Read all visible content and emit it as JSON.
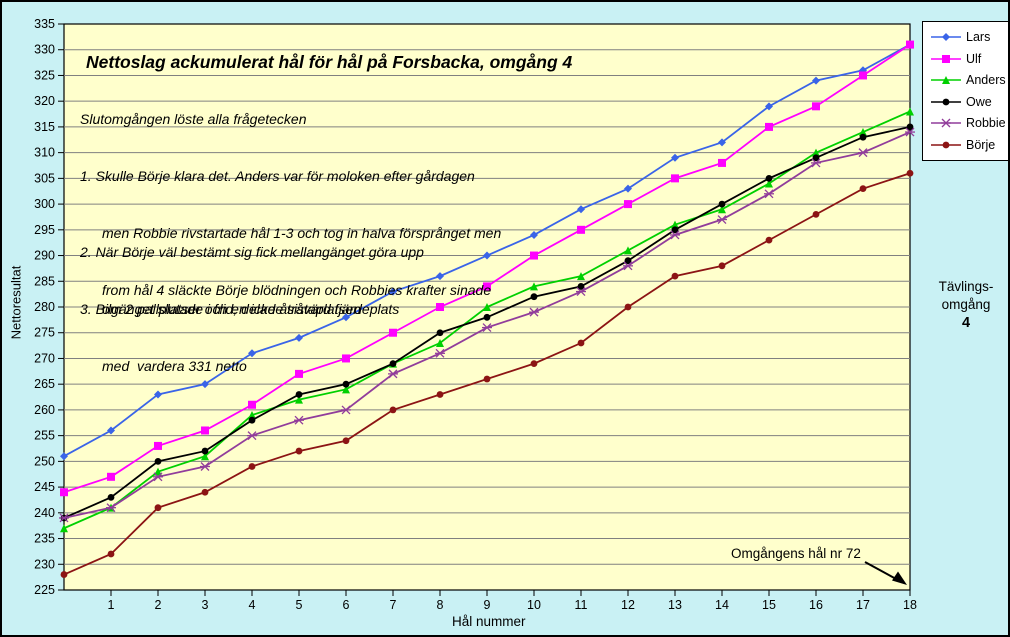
{
  "window": {
    "outer_background": "#c9f1f4",
    "border_color": "#000000"
  },
  "chart_data": {
    "type": "line",
    "title": "Nettoslag ackumulerat hål för hål på Forsbacka, omgång 4",
    "xlabel": "Hål nummer",
    "ylabel": "Nettoresultat",
    "ylim": [
      225,
      335
    ],
    "ytick_step": 5,
    "xticks": [
      1,
      2,
      3,
      4,
      5,
      6,
      7,
      8,
      9,
      10,
      11,
      12,
      13,
      14,
      15,
      16,
      17,
      18
    ],
    "x": [
      0,
      1,
      2,
      3,
      4,
      5,
      6,
      7,
      8,
      9,
      10,
      11,
      12,
      13,
      14,
      15,
      16,
      17,
      18
    ],
    "grid": "horizontal",
    "legend_position": "right",
    "plot_background": "#ffffcc",
    "grid_color": "#808080",
    "axis_color": "#000000",
    "series": [
      {
        "name": "Lars",
        "color": "#3a64e8",
        "marker": "diamond",
        "values": [
          251,
          256,
          263,
          265,
          271,
          274,
          278,
          283,
          286,
          290,
          294,
          299,
          303,
          309,
          312,
          319,
          324,
          326,
          331
        ]
      },
      {
        "name": "Ulf",
        "color": "#ff00ff",
        "marker": "square",
        "values": [
          244,
          247,
          253,
          256,
          261,
          267,
          270,
          275,
          280,
          284,
          290,
          295,
          300,
          305,
          308,
          315,
          319,
          325,
          331
        ]
      },
      {
        "name": "Anders",
        "color": "#00d000",
        "marker": "triangle",
        "values": [
          237,
          241,
          248,
          251,
          259,
          262,
          264,
          269,
          273,
          280,
          284,
          286,
          291,
          296,
          299,
          304,
          310,
          314,
          318
        ]
      },
      {
        "name": "Owe",
        "color": "#000000",
        "marker": "circle",
        "values": [
          239,
          243,
          250,
          252,
          258,
          263,
          265,
          269,
          275,
          278,
          282,
          284,
          289,
          295,
          300,
          305,
          309,
          313,
          315
        ]
      },
      {
        "name": "Robbie",
        "color": "#913d9b",
        "marker": "star",
        "values": [
          239,
          241,
          247,
          249,
          255,
          258,
          260,
          267,
          271,
          276,
          279,
          283,
          288,
          294,
          297,
          302,
          308,
          310,
          314
        ]
      },
      {
        "name": "Börje",
        "color": "#8c1414",
        "marker": "circle",
        "values": [
          228,
          232,
          241,
          244,
          249,
          252,
          254,
          260,
          263,
          266,
          269,
          273,
          280,
          286,
          288,
          293,
          298,
          303,
          306
        ]
      }
    ]
  },
  "notes": {
    "intro": "Slutomgången löste alla frågetecken",
    "item1": [
      "1. Skulle Börje klara det. Anders var för moloken efter gårdagen",
      "men Robbie rivstartade hål 1-3 och tog in halva försprånget men",
      "from hål 4 släckte Börje blödningen och Robbies krafter sinade"
    ],
    "item2": [
      "2. När Börje väl bestämt sig fick mellangänget göra upp",
      "om 2 pallplatser och en icke åtråvärd fjärdeplats"
    ],
    "item3": [
      "3. Bilgänget slutade i frid, delade sistaplatsen",
      "med  vardera 331 netto"
    ]
  },
  "callout": {
    "text": "Omgångens hål nr 72"
  },
  "side_label": {
    "line1": "Tävlings-",
    "line2": "omgång",
    "line3": "4"
  }
}
